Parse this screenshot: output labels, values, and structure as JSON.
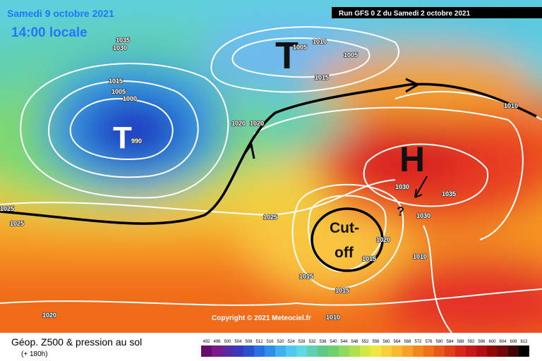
{
  "header": {
    "date": "Samedi 9 octobre 2021",
    "time": "14:00 locale",
    "run": "Run GFS 0 Z du Samedi 2 octobre 2021"
  },
  "symbols": {
    "low_north": "T",
    "low_greenland": "T",
    "high": "H",
    "cutoff_line1": "Cut-",
    "cutoff_line2": "off",
    "question": "?"
  },
  "isobar_labels": [
    "1035",
    "1030",
    "1010",
    "1005",
    "1005",
    "1015",
    "1015",
    "1005",
    "1000",
    "1020",
    "1020",
    "990",
    "1025",
    "1025",
    "1025",
    "1030",
    "1035",
    "1030",
    "1020",
    "1015",
    "1010",
    "1015",
    "1015",
    "1010",
    "1020",
    "1010"
  ],
  "copyright": "Copyright © 2021 Meteociel.fr",
  "footer": {
    "title": "Géop. Z500 & pression au sol",
    "subtitle": "(+ 180h)"
  },
  "colorbar": [
    "492",
    "496",
    "500",
    "504",
    "508",
    "512",
    "516",
    "520",
    "524",
    "528",
    "532",
    "536",
    "540",
    "544",
    "548",
    "552",
    "556",
    "560",
    "564",
    "568",
    "572",
    "576",
    "580",
    "584",
    "588",
    "592",
    "596",
    "600",
    "604",
    "608",
    "612"
  ]
}
